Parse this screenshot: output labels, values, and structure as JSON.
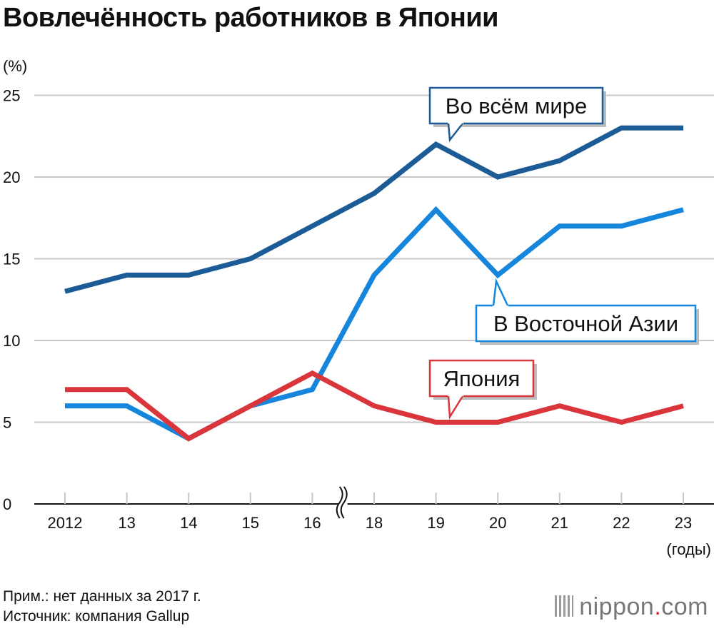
{
  "chart_data": {
    "type": "line",
    "title": "Вовлечённость работников в Японии",
    "ylabel": "(%)",
    "xlabel": "(годы)",
    "ylim": [
      0,
      25
    ],
    "yticks": [
      0,
      5,
      10,
      15,
      20,
      25
    ],
    "grid": true,
    "axis_break": "между 16 и 18",
    "categories": [
      "2012",
      "13",
      "14",
      "15",
      "16",
      "18",
      "19",
      "20",
      "21",
      "22",
      "23"
    ],
    "series": [
      {
        "name": "Во всём мире",
        "color": "#1b5b96",
        "values": [
          13,
          14,
          14,
          15,
          17,
          19,
          22,
          20,
          21,
          23,
          23
        ]
      },
      {
        "name": "В Восточной Азии",
        "color": "#1686dd",
        "values": [
          6,
          6,
          4,
          6,
          7,
          14,
          18,
          14,
          17,
          17,
          18
        ]
      },
      {
        "name": "Япония",
        "color": "#d9353b",
        "values": [
          7,
          7,
          4,
          6,
          8,
          6,
          5,
          5,
          6,
          5,
          6
        ]
      }
    ]
  },
  "notes": {
    "note": "Прим.: нет данных за 2017 г.",
    "source": "Источник: компания Gallup"
  },
  "logo": {
    "main": "nippon",
    "dot": ".",
    "suffix": "com"
  }
}
